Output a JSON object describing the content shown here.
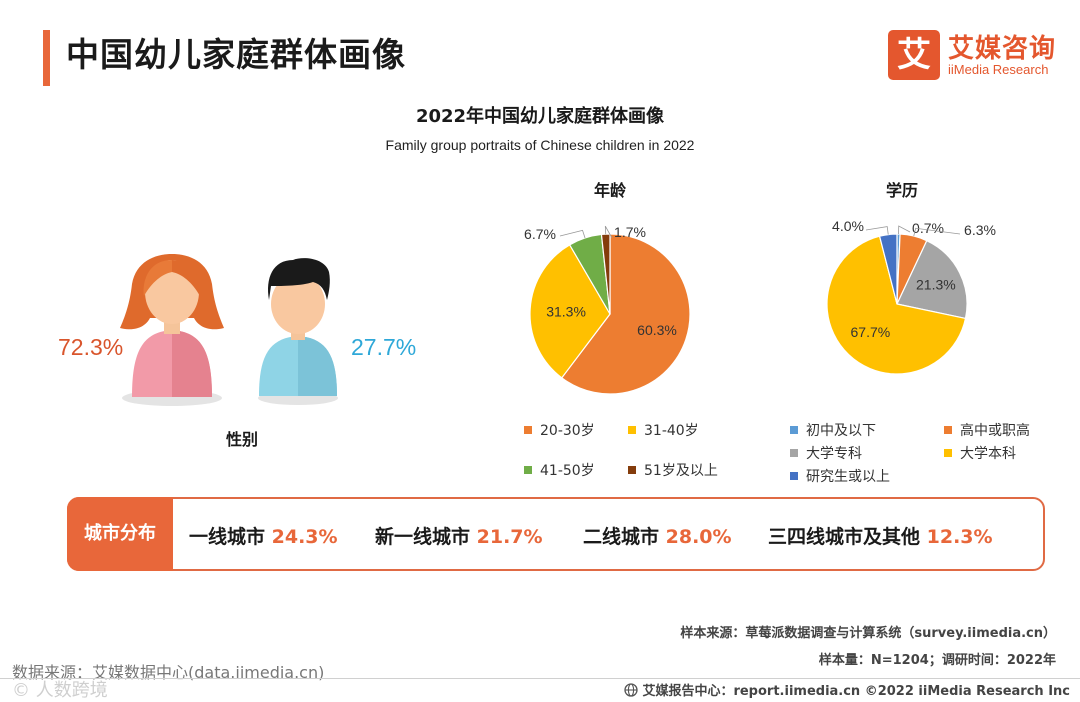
{
  "header": {
    "title": "中国幼儿家庭群体画像",
    "logo_mark": "艾",
    "logo_cn": "艾媒咨询",
    "logo_en": "iiMedia Research"
  },
  "chart_title": "2022年中国幼儿家庭群体画像",
  "chart_subtitle": "Family group portraits of Chinese children in 2022",
  "gender": {
    "title": "性别",
    "female_pct": "72.3%",
    "male_pct": "27.7%"
  },
  "colors": {
    "accent": "#e8673a",
    "female": "#d9552c",
    "male": "#2ea8d8"
  },
  "chart_data": [
    {
      "type": "pie",
      "title": "年龄",
      "labels": [
        "20-30岁",
        "31-40岁",
        "41-50岁",
        "51岁及以上"
      ],
      "values": [
        60.3,
        31.3,
        6.7,
        1.7
      ],
      "value_labels": [
        "60.3%",
        "31.3%",
        "6.7%",
        "1.7%"
      ],
      "colors": [
        "#ed7d31",
        "#ffc000",
        "#70ad47",
        "#843c0c"
      ],
      "legend_position": "bottom"
    },
    {
      "type": "pie",
      "title": "学历",
      "labels": [
        "初中及以下",
        "高中或职高",
        "大学专科",
        "大学本科",
        "研究生或以上"
      ],
      "values": [
        0.7,
        6.3,
        21.3,
        67.7,
        4.0
      ],
      "value_labels": [
        "0.7%",
        "6.3%",
        "21.3%",
        "67.7%",
        "4.0%"
      ],
      "colors": [
        "#5b9bd5",
        "#ed7d31",
        "#a5a5a5",
        "#ffc000",
        "#4472c4"
      ],
      "legend_position": "bottom"
    },
    {
      "type": "table",
      "title": "城市分布",
      "labels": [
        "一线城市",
        "新一线城市",
        "二线城市",
        "三四线城市及其他"
      ],
      "values": [
        24.3,
        21.7,
        28.0,
        12.3
      ],
      "value_labels": [
        "24.3%",
        "21.7%",
        "28.0%",
        "12.3%"
      ]
    }
  ],
  "source": {
    "sample_source": "样本来源：草莓派数据调查与计算系统（survey.iimedia.cn）",
    "sample_size": "样本量：N=1204；调研时间：2022年",
    "data_source": "数据来源：艾媒数据中心(data.iimedia.cn)",
    "footer": "艾媒报告中心：report.iimedia.cn   ©2022  iiMedia Research  Inc",
    "watermark": "©  人数跨境"
  }
}
